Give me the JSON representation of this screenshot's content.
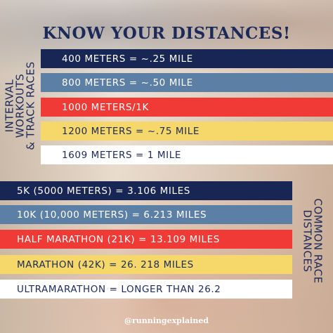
{
  "title": "KNOW YOUR DISTANCES!",
  "sections": {
    "interval": {
      "label_lines": [
        "INTERVAL",
        "WORKOUTS",
        "& TRACK RACES"
      ],
      "rows": [
        {
          "text": "400 METERS = ~.25 MILE",
          "color": "#172654"
        },
        {
          "text": "800 METERS = ~.50 MILE",
          "color": "#5c7fa6"
        },
        {
          "text": "1000 METERS/1K",
          "color": "#ef3a35"
        },
        {
          "text": "1200 METERS = ~.75 MILE",
          "color": "#f6d86a"
        },
        {
          "text": "1609 METERS = 1 MILE",
          "color": "#ffffff"
        }
      ]
    },
    "race": {
      "label_lines": [
        "COMMON RACE",
        "DISTANCES"
      ],
      "rows": [
        {
          "text": "5K (5000 METERS) = 3.106 MILES",
          "color": "#172654"
        },
        {
          "text": "10K (10,000 METERS) = 6.213 MILES",
          "color": "#5c7fa6"
        },
        {
          "text": "HALF MARATHON (21K) = 13.109 MILES",
          "color": "#ef3a35"
        },
        {
          "text": "MARATHON (42K) = 26. 218 MILES",
          "color": "#f6d86a"
        },
        {
          "text": "ULTRAMARATHON = LONGER THAN 26.2",
          "color": "#ffffff"
        }
      ]
    }
  },
  "handle": "@runningexplained"
}
